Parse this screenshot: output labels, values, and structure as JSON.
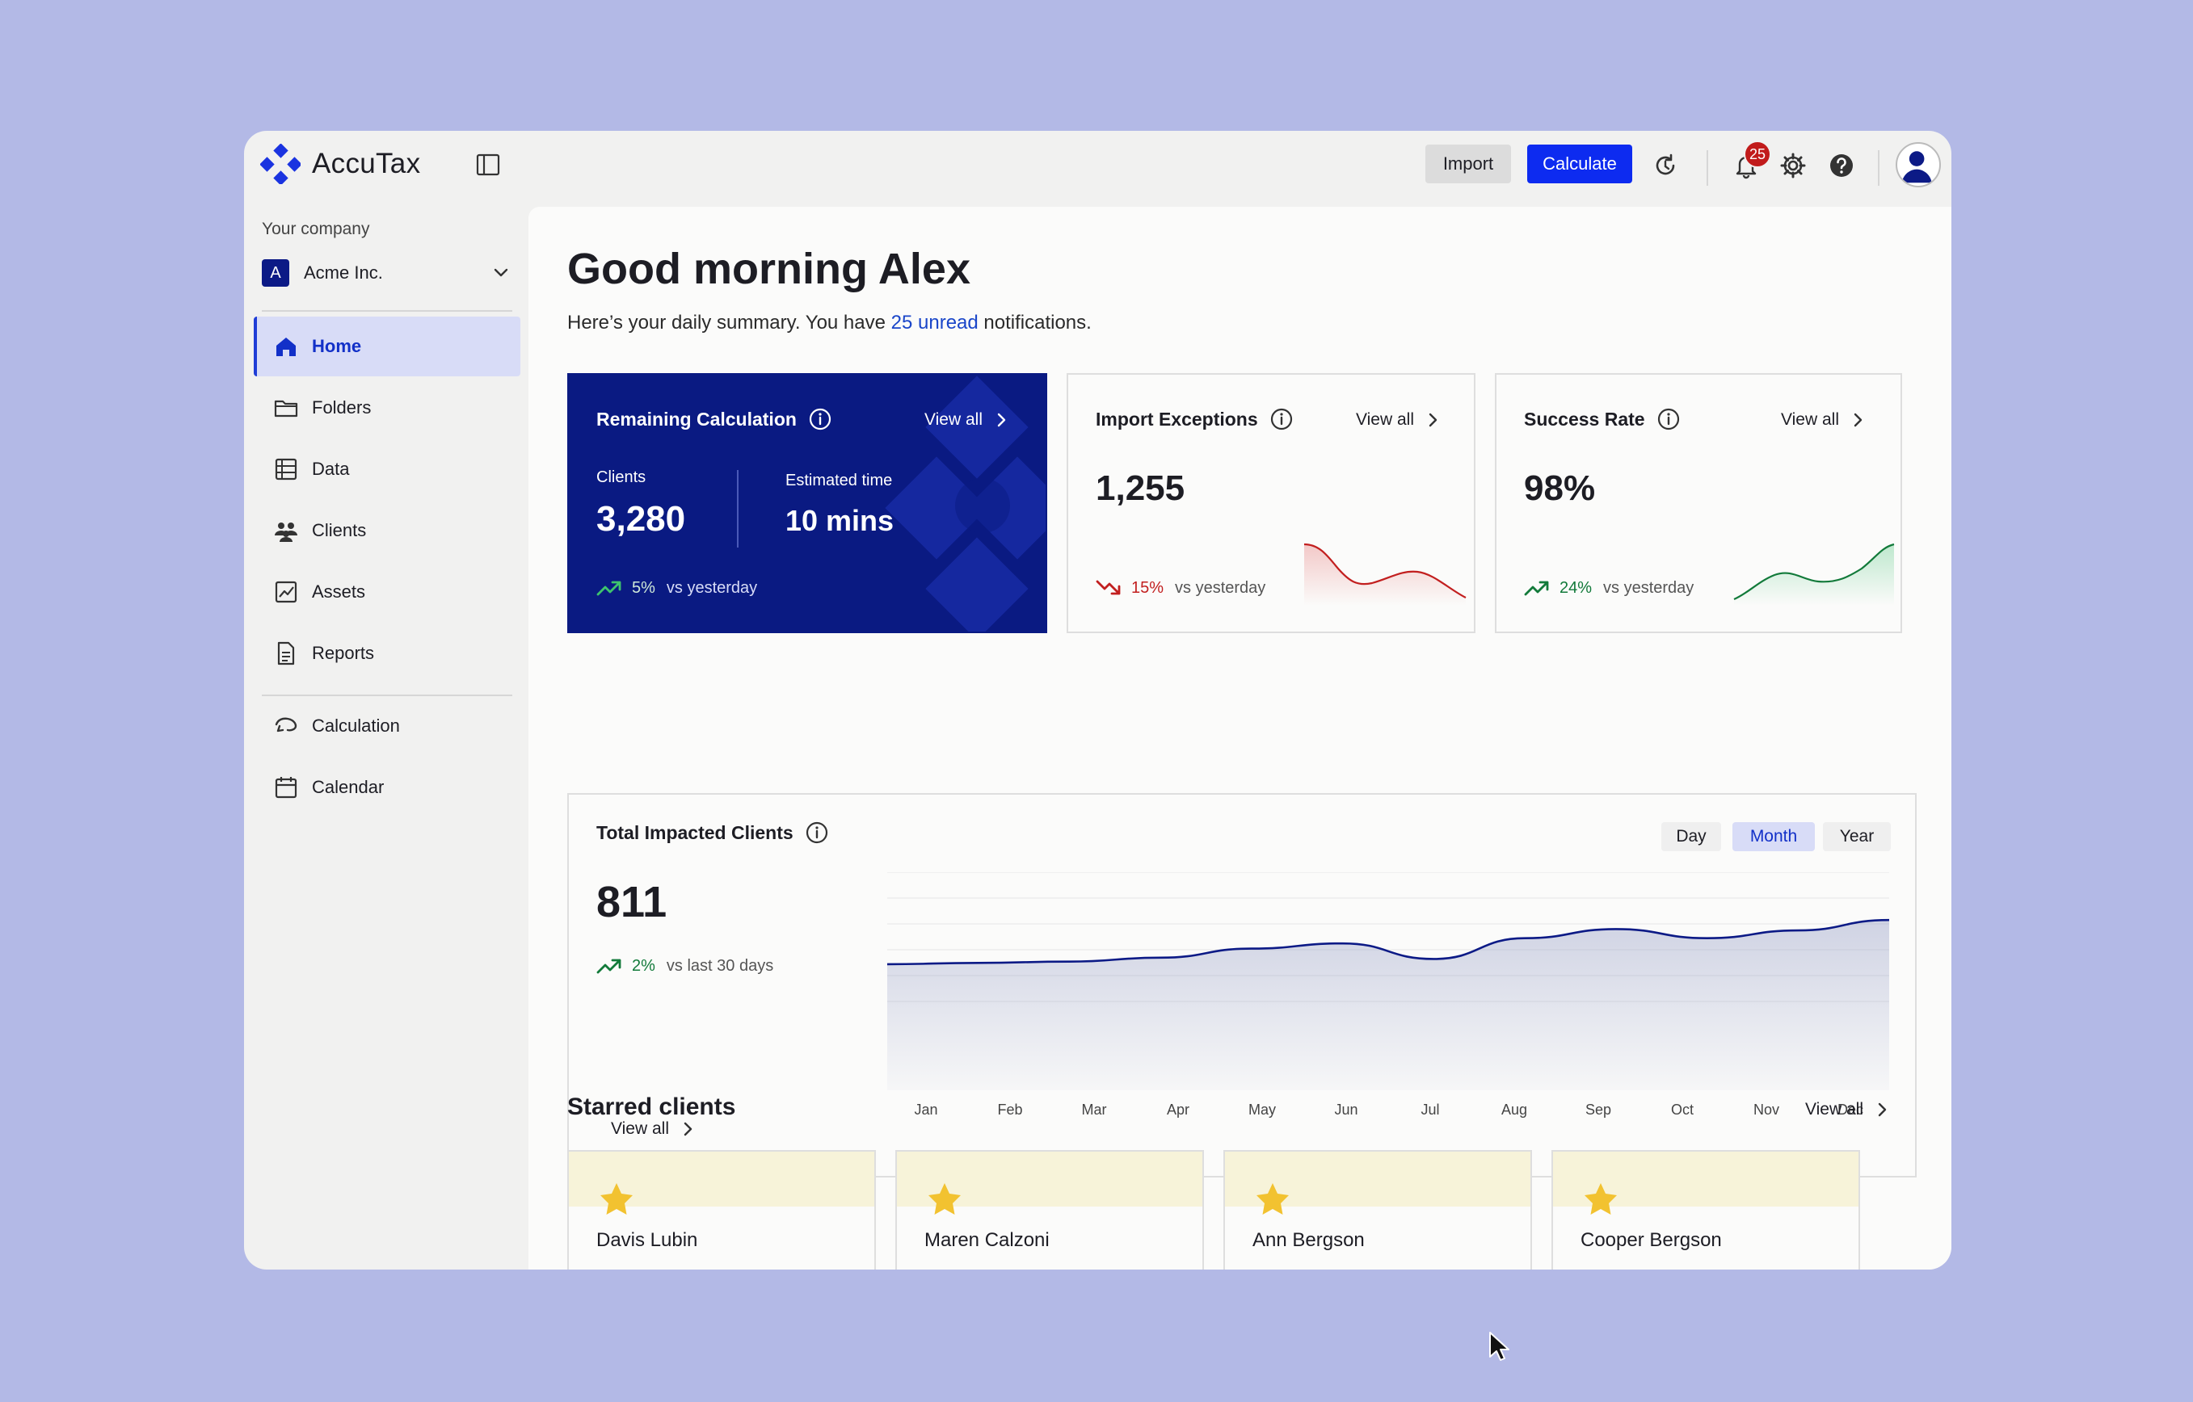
{
  "app": {
    "name": "AccuTax"
  },
  "topbar": {
    "import_label": "Import",
    "calculate_label": "Calculate",
    "notification_count": "25"
  },
  "sidebar": {
    "company_label": "Your company",
    "company_initial": "A",
    "company_name": "Acme Inc.",
    "items": [
      {
        "label": "Home",
        "icon": "home-icon",
        "active": true
      },
      {
        "label": "Folders",
        "icon": "folder-icon"
      },
      {
        "label": "Data",
        "icon": "database-icon"
      },
      {
        "label": "Clients",
        "icon": "users-icon"
      },
      {
        "label": "Assets",
        "icon": "chart-icon"
      },
      {
        "label": "Reports",
        "icon": "document-icon"
      },
      {
        "label": "Calculation",
        "icon": "calculation-icon"
      },
      {
        "label": "Calendar",
        "icon": "calendar-icon"
      }
    ]
  },
  "main": {
    "greeting": "Good morning Alex",
    "summary_prefix": "Here’s your daily summary. You have ",
    "summary_link": "25 unread",
    "summary_suffix": " notifications."
  },
  "cards": {
    "remaining": {
      "title": "Remaining Calculation",
      "view_all": "View all",
      "clients_label": "Clients",
      "clients_value": "3,280",
      "time_label": "Estimated time",
      "time_value": "10 mins",
      "trend_value": "5%",
      "trend_vs": "vs  yesterday"
    },
    "exceptions": {
      "title": "Import Exceptions",
      "view_all": "View all",
      "value": "1,255",
      "trend_value": "15%",
      "trend_vs": "vs  yesterday"
    },
    "success": {
      "title": "Success Rate",
      "view_all": "View all",
      "value": "98%",
      "trend_value": "24%",
      "trend_vs": "vs  yesterday"
    }
  },
  "impacted": {
    "title": "Total Impacted Clients",
    "value": "811",
    "trend_value": "2%",
    "trend_vs": "vs  last 30 days",
    "view_all": "View all",
    "periods": [
      "Day",
      "Month",
      "Year"
    ],
    "active_period": "Month"
  },
  "chart_data": {
    "type": "area",
    "x": [
      "Jan",
      "Feb",
      "Mar",
      "Apr",
      "May",
      "Jun",
      "Jul",
      "Aug",
      "Sep",
      "Oct",
      "Nov",
      "Dec"
    ],
    "values": [
      0.1,
      0.11,
      0.12,
      0.15,
      0.22,
      0.26,
      0.14,
      0.3,
      0.37,
      0.3,
      0.36,
      0.44
    ],
    "title": "Total Impacted Clients",
    "xlabel": "",
    "ylabel": "",
    "ylim": [
      0,
      1
    ],
    "grid": true,
    "color": "#0c1a86"
  },
  "starred": {
    "title": "Starred clients",
    "view_all": "View all",
    "clients": [
      "Davis Lubin",
      "Maren Calzoni",
      "Ann Bergson",
      "Cooper Bergson"
    ]
  },
  "colors": {
    "accent": "#0d2bf0",
    "navy": "#0a1a82",
    "positive": "#127a3a",
    "negative": "#c21f1f",
    "star": "#f2c230"
  }
}
